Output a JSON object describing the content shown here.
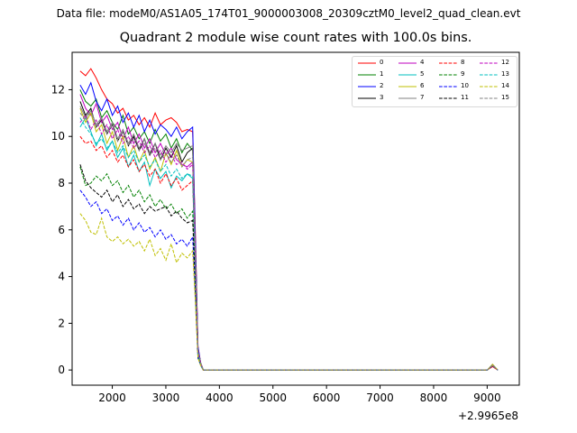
{
  "suptitle": "Data file: modeM0/AS1A05_174T01_9000003008_20309cztM0_level2_quad_clean.evt",
  "chart_data": {
    "type": "line",
    "title": "Quadrant 2 module wise count rates with 100.0s bins.",
    "xlabel": "",
    "ylabel": "",
    "x_offset_label": "+2.9965e8",
    "xlim": [
      1250,
      9600
    ],
    "ylim": [
      -0.65,
      13.6
    ],
    "xticks": [
      2000,
      3000,
      4000,
      5000,
      6000,
      7000,
      8000,
      9000
    ],
    "yticks": [
      0,
      2,
      4,
      6,
      8,
      10,
      12
    ],
    "grid": false,
    "legend_position": "top-right",
    "x": [
      1400,
      1500,
      1600,
      1700,
      1800,
      1900,
      2000,
      2100,
      2200,
      2300,
      2400,
      2500,
      2600,
      2700,
      2800,
      2900,
      3000,
      3100,
      3200,
      3300,
      3400,
      3500,
      3550,
      3600,
      3650,
      3700,
      3800,
      4000,
      5000,
      6000,
      7000,
      8000,
      9000,
      9100,
      9200
    ],
    "series": [
      {
        "name": "0",
        "color": "#ff0000",
        "dash": "solid",
        "values": [
          12.8,
          12.6,
          12.9,
          12.5,
          12.0,
          11.6,
          11.4,
          11.0,
          11.2,
          10.7,
          10.9,
          10.5,
          10.8,
          10.4,
          11.0,
          10.5,
          10.7,
          10.8,
          10.6,
          10.2,
          10.3,
          10.2,
          6.0,
          1.0,
          0.3,
          0.0,
          0.0,
          0.0,
          0.0,
          0.0,
          0.0,
          0.0,
          0.0,
          0.15,
          0.0
        ]
      },
      {
        "name": "1",
        "color": "#008000",
        "dash": "solid",
        "values": [
          12.0,
          11.5,
          11.3,
          11.6,
          10.8,
          11.1,
          10.6,
          10.3,
          10.9,
          10.1,
          10.4,
          9.9,
          10.2,
          9.7,
          10.3,
          9.8,
          10.1,
          9.5,
          9.9,
          9.3,
          9.7,
          9.4,
          5.5,
          0.9,
          0.3,
          0.0,
          0.0,
          0.0,
          0.0,
          0.0,
          0.0,
          0.0,
          0.0,
          0.2,
          0.0
        ]
      },
      {
        "name": "2",
        "color": "#0000ff",
        "dash": "solid",
        "values": [
          12.2,
          11.8,
          12.3,
          11.5,
          11.1,
          11.6,
          10.9,
          11.3,
          10.6,
          11.0,
          10.4,
          10.9,
          10.2,
          10.7,
          10.1,
          10.5,
          10.3,
          10.0,
          10.4,
          9.9,
          10.2,
          10.4,
          5.8,
          1.0,
          0.3,
          0.0,
          0.0,
          0.0,
          0.0,
          0.0,
          0.0,
          0.0,
          0.0,
          0.18,
          0.0
        ]
      },
      {
        "name": "3",
        "color": "#000000",
        "dash": "solid",
        "values": [
          11.5,
          10.9,
          11.2,
          10.4,
          10.7,
          10.1,
          10.5,
          9.8,
          10.2,
          9.6,
          10.0,
          9.4,
          9.9,
          9.2,
          9.7,
          9.0,
          9.5,
          9.1,
          9.6,
          8.9,
          9.3,
          9.5,
          5.2,
          0.8,
          0.3,
          0.0,
          0.0,
          0.0,
          0.0,
          0.0,
          0.0,
          0.0,
          0.0,
          0.2,
          0.0
        ]
      },
      {
        "name": "4",
        "color": "#bf00bf",
        "dash": "solid",
        "values": [
          11.8,
          11.2,
          10.9,
          11.4,
          10.6,
          10.9,
          10.3,
          10.6,
          9.9,
          10.4,
          9.7,
          10.1,
          9.5,
          9.9,
          9.3,
          9.7,
          9.2,
          9.5,
          9.0,
          8.8,
          8.7,
          8.9,
          5.0,
          0.8,
          0.3,
          0.0,
          0.0,
          0.0,
          0.0,
          0.0,
          0.0,
          0.0,
          0.0,
          0.2,
          0.0
        ]
      },
      {
        "name": "5",
        "color": "#00bfbf",
        "dash": "solid",
        "values": [
          10.4,
          10.8,
          10.2,
          9.6,
          10.1,
          9.4,
          9.8,
          9.1,
          9.5,
          8.7,
          9.2,
          8.5,
          8.9,
          7.9,
          8.6,
          8.2,
          8.5,
          7.8,
          8.3,
          8.1,
          8.4,
          8.2,
          4.6,
          0.7,
          0.3,
          0.0,
          0.0,
          0.0,
          0.0,
          0.0,
          0.0,
          0.0,
          0.0,
          0.2,
          0.0
        ]
      },
      {
        "name": "6",
        "color": "#bfbf00",
        "dash": "solid",
        "values": [
          11.2,
          10.6,
          11.0,
          10.2,
          10.5,
          9.7,
          10.2,
          9.4,
          10.0,
          9.1,
          9.6,
          8.9,
          9.4,
          8.6,
          9.1,
          8.5,
          9.3,
          8.8,
          9.4,
          8.7,
          9.0,
          8.9,
          5.0,
          0.8,
          0.3,
          0.0,
          0.0,
          0.0,
          0.0,
          0.0,
          0.0,
          0.0,
          0.0,
          0.25,
          0.0
        ]
      },
      {
        "name": "7",
        "color": "#808080",
        "dash": "solid",
        "values": [
          11.3,
          10.8,
          11.1,
          10.5,
          10.8,
          10.2,
          10.6,
          9.9,
          10.3,
          9.7,
          10.1,
          9.5,
          9.9,
          9.3,
          9.7,
          9.2,
          9.6,
          9.3,
          9.7,
          9.4,
          9.5,
          9.6,
          5.2,
          0.8,
          0.3,
          0.0,
          0.0,
          0.0,
          0.0,
          0.0,
          0.0,
          0.0,
          0.0,
          0.22,
          0.0
        ]
      },
      {
        "name": "8",
        "color": "#ff0000",
        "dash": "dashed",
        "values": [
          10.0,
          9.7,
          9.8,
          9.4,
          9.6,
          9.1,
          9.4,
          8.9,
          9.2,
          8.7,
          9.0,
          8.5,
          8.8,
          8.3,
          8.6,
          8.0,
          8.4,
          7.9,
          8.2,
          7.7,
          7.9,
          8.1,
          4.5,
          0.7,
          0.2,
          0.0,
          0.0,
          0.0,
          0.0,
          0.0,
          0.0,
          0.0,
          0.0,
          0.15,
          0.0
        ]
      },
      {
        "name": "9",
        "color": "#008000",
        "dash": "dashed",
        "values": [
          8.7,
          7.9,
          8.0,
          8.3,
          8.1,
          8.4,
          7.9,
          8.1,
          7.6,
          7.9,
          7.4,
          7.7,
          7.2,
          7.5,
          7.0,
          7.3,
          6.9,
          7.1,
          6.7,
          6.9,
          6.5,
          6.8,
          3.9,
          0.6,
          0.2,
          0.0,
          0.0,
          0.0,
          0.0,
          0.0,
          0.0,
          0.0,
          0.0,
          0.2,
          0.0
        ]
      },
      {
        "name": "10",
        "color": "#0000ff",
        "dash": "dashed",
        "values": [
          7.7,
          7.4,
          7.0,
          7.2,
          6.7,
          6.9,
          6.4,
          6.6,
          6.2,
          6.5,
          6.0,
          6.3,
          5.9,
          6.1,
          5.7,
          6.0,
          5.6,
          5.8,
          5.4,
          5.6,
          5.3,
          5.7,
          3.3,
          0.5,
          0.2,
          0.0,
          0.0,
          0.0,
          0.0,
          0.0,
          0.0,
          0.0,
          0.0,
          0.18,
          0.0
        ]
      },
      {
        "name": "11",
        "color": "#000000",
        "dash": "dashed",
        "values": [
          8.8,
          8.1,
          7.8,
          7.6,
          7.4,
          7.7,
          7.2,
          7.5,
          7.0,
          7.3,
          6.9,
          7.1,
          6.7,
          7.0,
          6.8,
          6.9,
          7.0,
          6.6,
          6.8,
          6.5,
          6.3,
          6.4,
          3.8,
          0.6,
          0.2,
          0.0,
          0.0,
          0.0,
          0.0,
          0.0,
          0.0,
          0.0,
          0.0,
          0.2,
          0.0
        ]
      },
      {
        "name": "12",
        "color": "#bf00bf",
        "dash": "dashed",
        "values": [
          10.6,
          10.9,
          10.3,
          10.7,
          10.1,
          10.5,
          9.9,
          10.3,
          9.7,
          10.0,
          9.5,
          9.8,
          9.3,
          9.6,
          9.1,
          9.4,
          8.9,
          9.2,
          8.8,
          8.9,
          8.6,
          8.8,
          4.9,
          0.8,
          0.3,
          0.0,
          0.0,
          0.0,
          0.0,
          0.0,
          0.0,
          0.0,
          0.0,
          0.2,
          0.0
        ]
      },
      {
        "name": "13",
        "color": "#00bfbf",
        "dash": "dashed",
        "values": [
          10.8,
          10.4,
          10.1,
          9.7,
          9.9,
          9.5,
          9.8,
          9.3,
          9.6,
          9.1,
          9.4,
          8.9,
          9.2,
          8.7,
          9.0,
          8.5,
          8.8,
          8.3,
          8.6,
          8.2,
          8.4,
          8.3,
          4.6,
          0.7,
          0.2,
          0.0,
          0.0,
          0.0,
          0.0,
          0.0,
          0.0,
          0.0,
          0.0,
          0.2,
          0.0
        ]
      },
      {
        "name": "14",
        "color": "#bfbf00",
        "dash": "dashed",
        "values": [
          6.7,
          6.4,
          5.9,
          5.8,
          6.5,
          5.7,
          5.5,
          5.7,
          5.4,
          5.6,
          5.3,
          5.5,
          5.1,
          5.6,
          4.9,
          5.2,
          4.7,
          5.4,
          4.6,
          5.0,
          4.8,
          5.1,
          3.0,
          0.5,
          0.2,
          0.0,
          0.0,
          0.0,
          0.0,
          0.0,
          0.0,
          0.0,
          0.0,
          0.2,
          0.0
        ]
      },
      {
        "name": "15",
        "color": "#808080",
        "dash": "dashed",
        "values": [
          11.0,
          10.7,
          11.1,
          10.4,
          10.8,
          10.1,
          10.5,
          9.8,
          10.2,
          9.6,
          9.9,
          9.4,
          9.7,
          9.2,
          9.5,
          9.0,
          9.3,
          8.9,
          9.2,
          8.7,
          9.0,
          9.1,
          5.1,
          0.8,
          0.3,
          0.0,
          0.0,
          0.0,
          0.0,
          0.0,
          0.0,
          0.0,
          0.0,
          0.2,
          0.0
        ]
      }
    ]
  }
}
